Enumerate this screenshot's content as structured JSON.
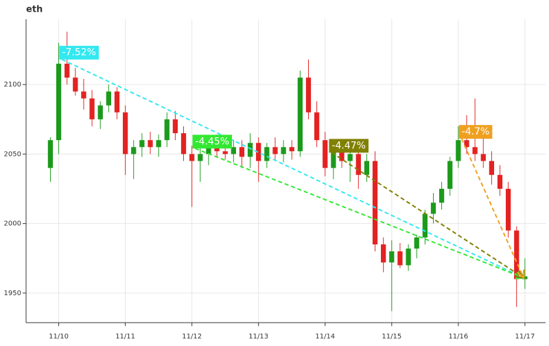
{
  "chart_data": {
    "type": "candlestick",
    "title": "eth",
    "x": [
      -0.125,
      0,
      0.125,
      0.25,
      0.375,
      0.5,
      0.625,
      0.75,
      0.875,
      1.0,
      1.125,
      1.25,
      1.375,
      1.5,
      1.625,
      1.75,
      1.875,
      2.0,
      2.125,
      2.25,
      2.375,
      2.5,
      2.625,
      2.75,
      2.875,
      3.0,
      3.125,
      3.25,
      3.375,
      3.5,
      3.625,
      3.75,
      3.875,
      4.0,
      4.125,
      4.25,
      4.375,
      4.5,
      4.625,
      4.75,
      4.875,
      5.0,
      5.125,
      5.25,
      5.375,
      5.5,
      5.625,
      5.75,
      5.875,
      6.0,
      6.125,
      6.25,
      6.375,
      6.5,
      6.625,
      6.75,
      6.875,
      7.0
    ],
    "open": [
      2040,
      2060,
      2115,
      2105,
      2095,
      2090,
      2075,
      2085,
      2095,
      2080,
      2050,
      2055,
      2060,
      2055,
      2060,
      2075,
      2065,
      2050,
      2045,
      2050,
      2058,
      2052,
      2050,
      2055,
      2048,
      2058,
      2045,
      2055,
      2050,
      2055,
      2052,
      2105,
      2080,
      2060,
      2040,
      2052,
      2045,
      2050,
      2035,
      2045,
      1985,
      1972,
      1980,
      1970,
      1982,
      1990,
      2007,
      2015,
      2025,
      2045,
      2060,
      2055,
      2050,
      2045,
      2035,
      2025,
      1995,
      1960
    ],
    "high": [
      2062,
      2130,
      2138,
      2112,
      2104,
      2096,
      2088,
      2100,
      2098,
      2085,
      2060,
      2065,
      2066,
      2064,
      2080,
      2081,
      2070,
      2056,
      2055,
      2062,
      2064,
      2058,
      2060,
      2060,
      2065,
      2062,
      2058,
      2062,
      2060,
      2060,
      2110,
      2118,
      2088,
      2066,
      2058,
      2060,
      2055,
      2058,
      2050,
      2052,
      1990,
      1988,
      1986,
      1985,
      1992,
      2010,
      2022,
      2030,
      2048,
      2070,
      2078,
      2090,
      2062,
      2052,
      2042,
      2030,
      1998,
      1975
    ],
    "low": [
      2030,
      2050,
      2100,
      2092,
      2082,
      2070,
      2068,
      2080,
      2075,
      2035,
      2032,
      2048,
      2050,
      2048,
      2055,
      2060,
      2045,
      2012,
      2030,
      2042,
      2048,
      2046,
      2044,
      2040,
      2040,
      2030,
      2040,
      2045,
      2044,
      2046,
      2048,
      2075,
      2055,
      2034,
      2032,
      2040,
      2030,
      2025,
      2030,
      1980,
      1965,
      1937,
      1968,
      1966,
      1975,
      1985,
      2000,
      2010,
      2020,
      2040,
      2050,
      2045,
      2040,
      2028,
      2020,
      1990,
      1940,
      1953
    ],
    "close": [
      2060,
      2115,
      2105,
      2095,
      2090,
      2075,
      2085,
      2095,
      2080,
      2050,
      2055,
      2060,
      2055,
      2060,
      2075,
      2065,
      2050,
      2045,
      2050,
      2058,
      2052,
      2050,
      2055,
      2048,
      2058,
      2045,
      2055,
      2050,
      2055,
      2052,
      2105,
      2080,
      2060,
      2040,
      2052,
      2045,
      2050,
      2035,
      2045,
      1985,
      1972,
      1980,
      1970,
      1982,
      1990,
      2007,
      2015,
      2025,
      2045,
      2060,
      2055,
      2050,
      2045,
      2035,
      2025,
      1995,
      1960,
      1962
    ],
    "up_color": "#1c9a1c",
    "down_color": "#e32222",
    "xlim": [
      -0.49,
      7.31
    ],
    "ylim": [
      1928.7,
      2147
    ],
    "xticks": [
      {
        "value": 0,
        "label": "11/10"
      },
      {
        "value": 1,
        "label": "11/11"
      },
      {
        "value": 2,
        "label": "11/12"
      },
      {
        "value": 3,
        "label": "11/13"
      },
      {
        "value": 4,
        "label": "11/14"
      },
      {
        "value": 5,
        "label": "11/15"
      },
      {
        "value": 6,
        "label": "11/16"
      },
      {
        "value": 7,
        "label": "11/17"
      }
    ],
    "yticks": [
      1950,
      2000,
      2050,
      2100
    ],
    "grid": true,
    "annotations": [
      {
        "label": "-7.52%",
        "color": "#33e8f0",
        "x0": 0.05,
        "y0": 2118,
        "x1": 6.98,
        "y1": 1961
      },
      {
        "label": "-4.45%",
        "color": "#33e833",
        "x0": 2.05,
        "y0": 2054,
        "x1": 6.98,
        "y1": 1961
      },
      {
        "label": "-4.47%",
        "color": "#808000",
        "x0": 4.1,
        "y0": 2051,
        "x1": 6.98,
        "y1": 1961
      },
      {
        "label": "-4.7%",
        "color": "#f0a020",
        "x0": 6.05,
        "y0": 2061,
        "x1": 6.98,
        "y1": 1961
      }
    ]
  }
}
